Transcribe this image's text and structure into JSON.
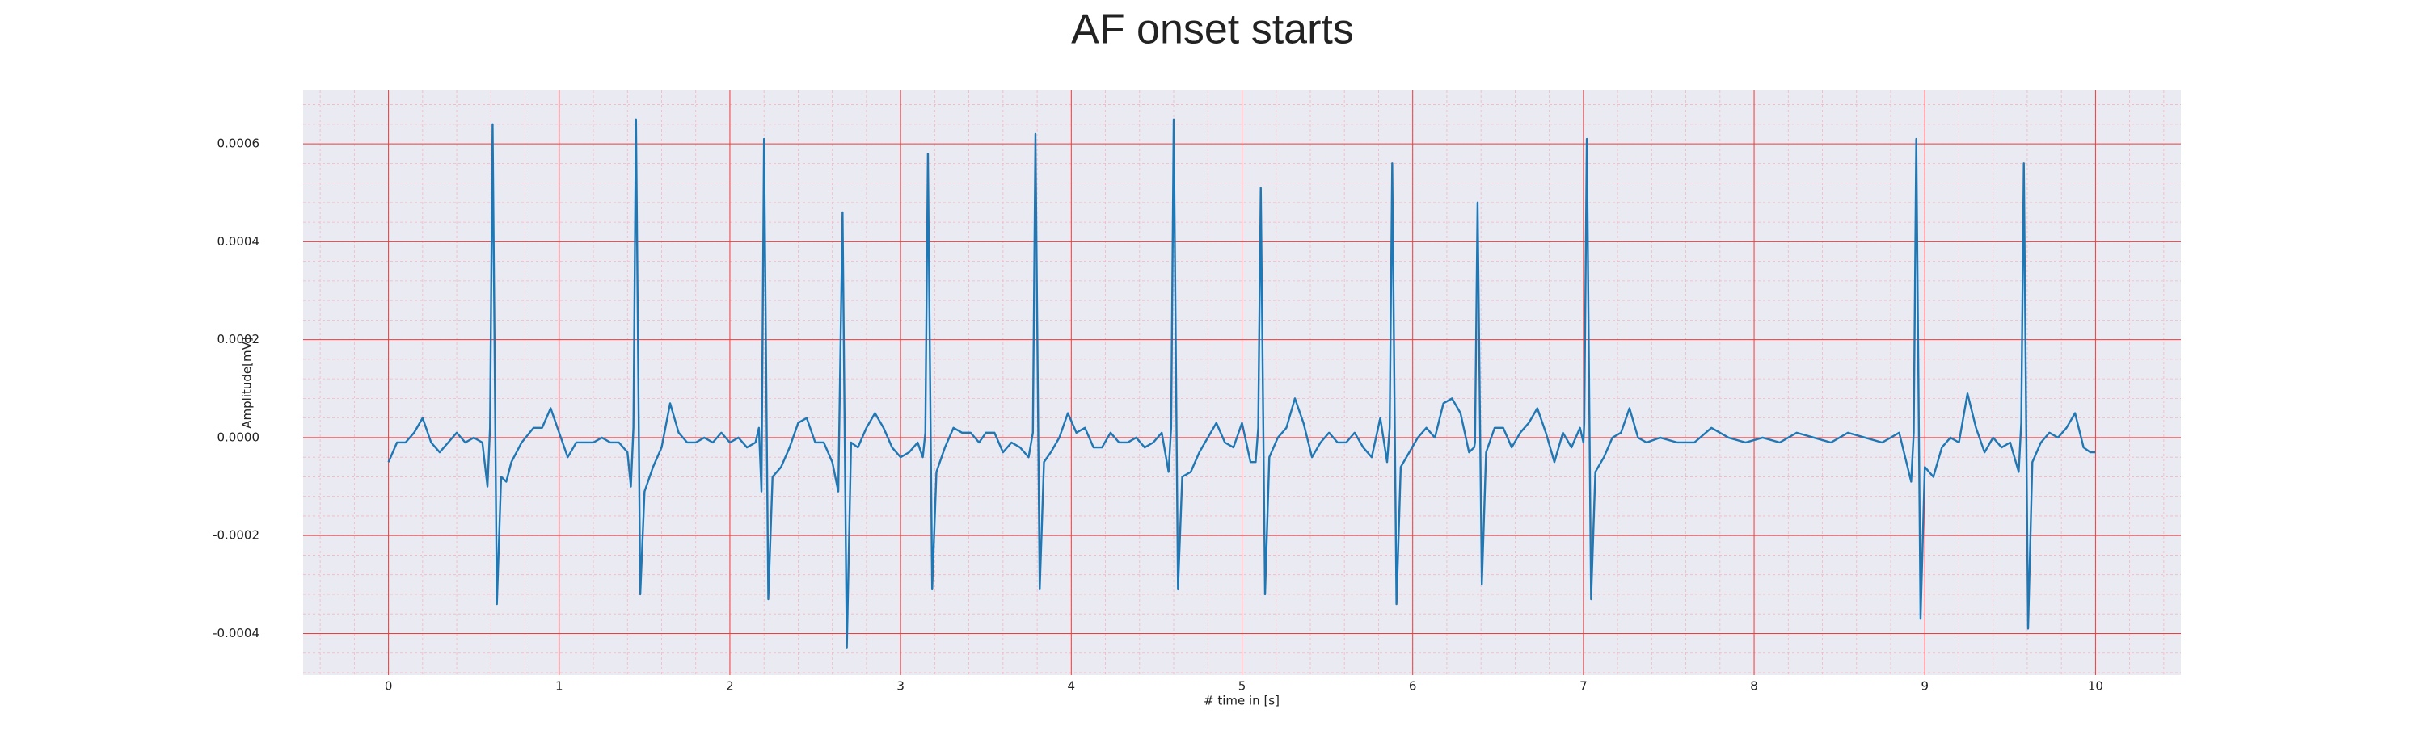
{
  "chart_data": {
    "type": "line",
    "title": "AF onset starts",
    "xlabel": "# time in [s]",
    "ylabel": "Amplitude[mV]",
    "color": "#1f77b4",
    "grid": true,
    "grid_color": "#f03c3c",
    "xlim": [
      -0.5,
      10.5
    ],
    "xticks": [
      0,
      1,
      2,
      3,
      4,
      5,
      6,
      7,
      8,
      9,
      10
    ],
    "ylim": [
      -0.000485,
      0.000709
    ],
    "yticks": [
      -0.0004,
      -0.0002,
      {
        "value": 0,
        "label": "0.0000"
      },
      0.0002,
      0.0004,
      0.0006
    ],
    "x": [
      0,
      0.05,
      0.1,
      0.15,
      0.2,
      0.25,
      0.3,
      0.35,
      0.4,
      0.45,
      0.5,
      0.55,
      0.58,
      0.595,
      0.61,
      0.635,
      0.66,
      0.69,
      0.72,
      0.78,
      0.85,
      0.9,
      0.95,
      1.0,
      1.05,
      1.1,
      1.15,
      1.2,
      1.25,
      1.3,
      1.35,
      1.4,
      1.42,
      1.435,
      1.45,
      1.475,
      1.5,
      1.55,
      1.6,
      1.65,
      1.7,
      1.75,
      1.8,
      1.85,
      1.9,
      1.95,
      2.0,
      2.05,
      2.1,
      2.15,
      2.17,
      2.185,
      2.2,
      2.225,
      2.25,
      2.3,
      2.35,
      2.4,
      2.45,
      2.5,
      2.55,
      2.6,
      2.635,
      2.66,
      2.685,
      2.71,
      2.75,
      2.8,
      2.85,
      2.9,
      2.95,
      3.0,
      3.05,
      3.1,
      3.13,
      3.145,
      3.16,
      3.185,
      3.21,
      3.26,
      3.31,
      3.36,
      3.41,
      3.46,
      3.5,
      3.55,
      3.6,
      3.65,
      3.7,
      3.75,
      3.775,
      3.79,
      3.815,
      3.84,
      3.88,
      3.93,
      3.98,
      4.03,
      4.08,
      4.13,
      4.18,
      4.23,
      4.28,
      4.33,
      4.38,
      4.43,
      4.48,
      4.53,
      4.57,
      4.585,
      4.6,
      4.625,
      4.65,
      4.7,
      4.75,
      4.8,
      4.85,
      4.9,
      4.95,
      5.0,
      5.05,
      5.08,
      5.095,
      5.11,
      5.135,
      5.16,
      5.21,
      5.26,
      5.31,
      5.36,
      5.41,
      5.46,
      5.51,
      5.56,
      5.61,
      5.66,
      5.71,
      5.76,
      5.81,
      5.85,
      5.865,
      5.88,
      5.905,
      5.93,
      5.98,
      6.03,
      6.08,
      6.13,
      6.18,
      6.23,
      6.28,
      6.33,
      6.36,
      6.365,
      6.38,
      6.405,
      6.43,
      6.48,
      6.53,
      6.58,
      6.63,
      6.68,
      6.73,
      6.78,
      6.83,
      6.88,
      6.93,
      6.98,
      7.0,
      7.005,
      7.02,
      7.045,
      7.07,
      7.12,
      7.17,
      7.22,
      7.27,
      7.32,
      7.37,
      7.45,
      7.55,
      7.65,
      7.75,
      7.85,
      7.95,
      8.05,
      8.15,
      8.25,
      8.35,
      8.45,
      8.55,
      8.65,
      8.75,
      8.85,
      8.92,
      8.935,
      8.95,
      8.975,
      9.0,
      9.05,
      9.1,
      9.15,
      9.2,
      9.25,
      9.3,
      9.35,
      9.4,
      9.45,
      9.5,
      9.55,
      9.565,
      9.58,
      9.605,
      9.63,
      9.68,
      9.73,
      9.78,
      9.83,
      9.88,
      9.93,
      9.97,
      10.0
    ],
    "values": [
      -5e-05,
      -1e-05,
      -1e-05,
      1e-05,
      4e-05,
      -1e-05,
      -3e-05,
      -1e-05,
      1e-05,
      -1e-05,
      0,
      -1e-05,
      -0.0001,
      2e-05,
      0.00064,
      -0.00034,
      -8e-05,
      -9e-05,
      -5e-05,
      -1e-05,
      2e-05,
      2e-05,
      6e-05,
      1e-05,
      -4e-05,
      -1e-05,
      -1e-05,
      -1e-05,
      0,
      -1e-05,
      -1e-05,
      -3e-05,
      -0.0001,
      2e-05,
      0.00065,
      -0.00032,
      -0.00011,
      -6e-05,
      -2e-05,
      7e-05,
      1e-05,
      -1e-05,
      -1e-05,
      0,
      -1e-05,
      1e-05,
      -1e-05,
      0,
      -2e-05,
      -1e-05,
      2e-05,
      -0.00011,
      0.00061,
      -0.00033,
      -8e-05,
      -6e-05,
      -2e-05,
      3e-05,
      4e-05,
      -1e-05,
      -1e-05,
      -5e-05,
      -0.00011,
      0.00046,
      -0.00043,
      -1e-05,
      -2e-05,
      2e-05,
      5e-05,
      2e-05,
      -2e-05,
      -4e-05,
      -3e-05,
      -1e-05,
      -4e-05,
      1e-05,
      0.00058,
      -0.00031,
      -7e-05,
      -2e-05,
      2e-05,
      1e-05,
      1e-05,
      -1e-05,
      1e-05,
      1e-05,
      -3e-05,
      -1e-05,
      -2e-05,
      -4e-05,
      1e-05,
      0.00062,
      -0.00031,
      -5e-05,
      -3e-05,
      0,
      5e-05,
      1e-05,
      2e-05,
      -2e-05,
      -2e-05,
      1e-05,
      -1e-05,
      -1e-05,
      0,
      -2e-05,
      -1e-05,
      1e-05,
      -7e-05,
      2e-05,
      0.00065,
      -0.00031,
      -8e-05,
      -7e-05,
      -3e-05,
      0,
      3e-05,
      -1e-05,
      -2e-05,
      3e-05,
      -5e-05,
      -5e-05,
      2e-05,
      0.00051,
      -0.00032,
      -4e-05,
      0,
      2e-05,
      8e-05,
      3e-05,
      -4e-05,
      -1e-05,
      1e-05,
      -1e-05,
      -1e-05,
      1e-05,
      -2e-05,
      -4e-05,
      4e-05,
      -5e-05,
      2e-05,
      0.00056,
      -0.00034,
      -6e-05,
      -3e-05,
      0,
      2e-05,
      0,
      7e-05,
      8e-05,
      5e-05,
      -3e-05,
      -2e-05,
      -1e-05,
      0.00048,
      -0.0003,
      -3e-05,
      2e-05,
      2e-05,
      -2e-05,
      1e-05,
      3e-05,
      6e-05,
      1e-05,
      -5e-05,
      1e-05,
      -2e-05,
      2e-05,
      -1e-05,
      3e-05,
      0.00061,
      -0.00033,
      -7e-05,
      -4e-05,
      0,
      1e-05,
      6e-05,
      0,
      -1e-05,
      0,
      -1e-05,
      -1e-05,
      2e-05,
      0,
      -1e-05,
      0,
      -1e-05,
      1e-05,
      0,
      -1e-05,
      1e-05,
      0,
      -1e-05,
      1e-05,
      -9e-05,
      1e-05,
      0.00061,
      -0.00037,
      -6e-05,
      -8e-05,
      -2e-05,
      0,
      -1e-05,
      9e-05,
      2e-05,
      -3e-05,
      0,
      -2e-05,
      -1e-05,
      -7e-05,
      3e-05,
      0.00056,
      -0.00039,
      -5e-05,
      -1e-05,
      1e-05,
      0,
      2e-05,
      5e-05,
      -2e-05,
      -3e-05,
      -3e-05
    ]
  }
}
